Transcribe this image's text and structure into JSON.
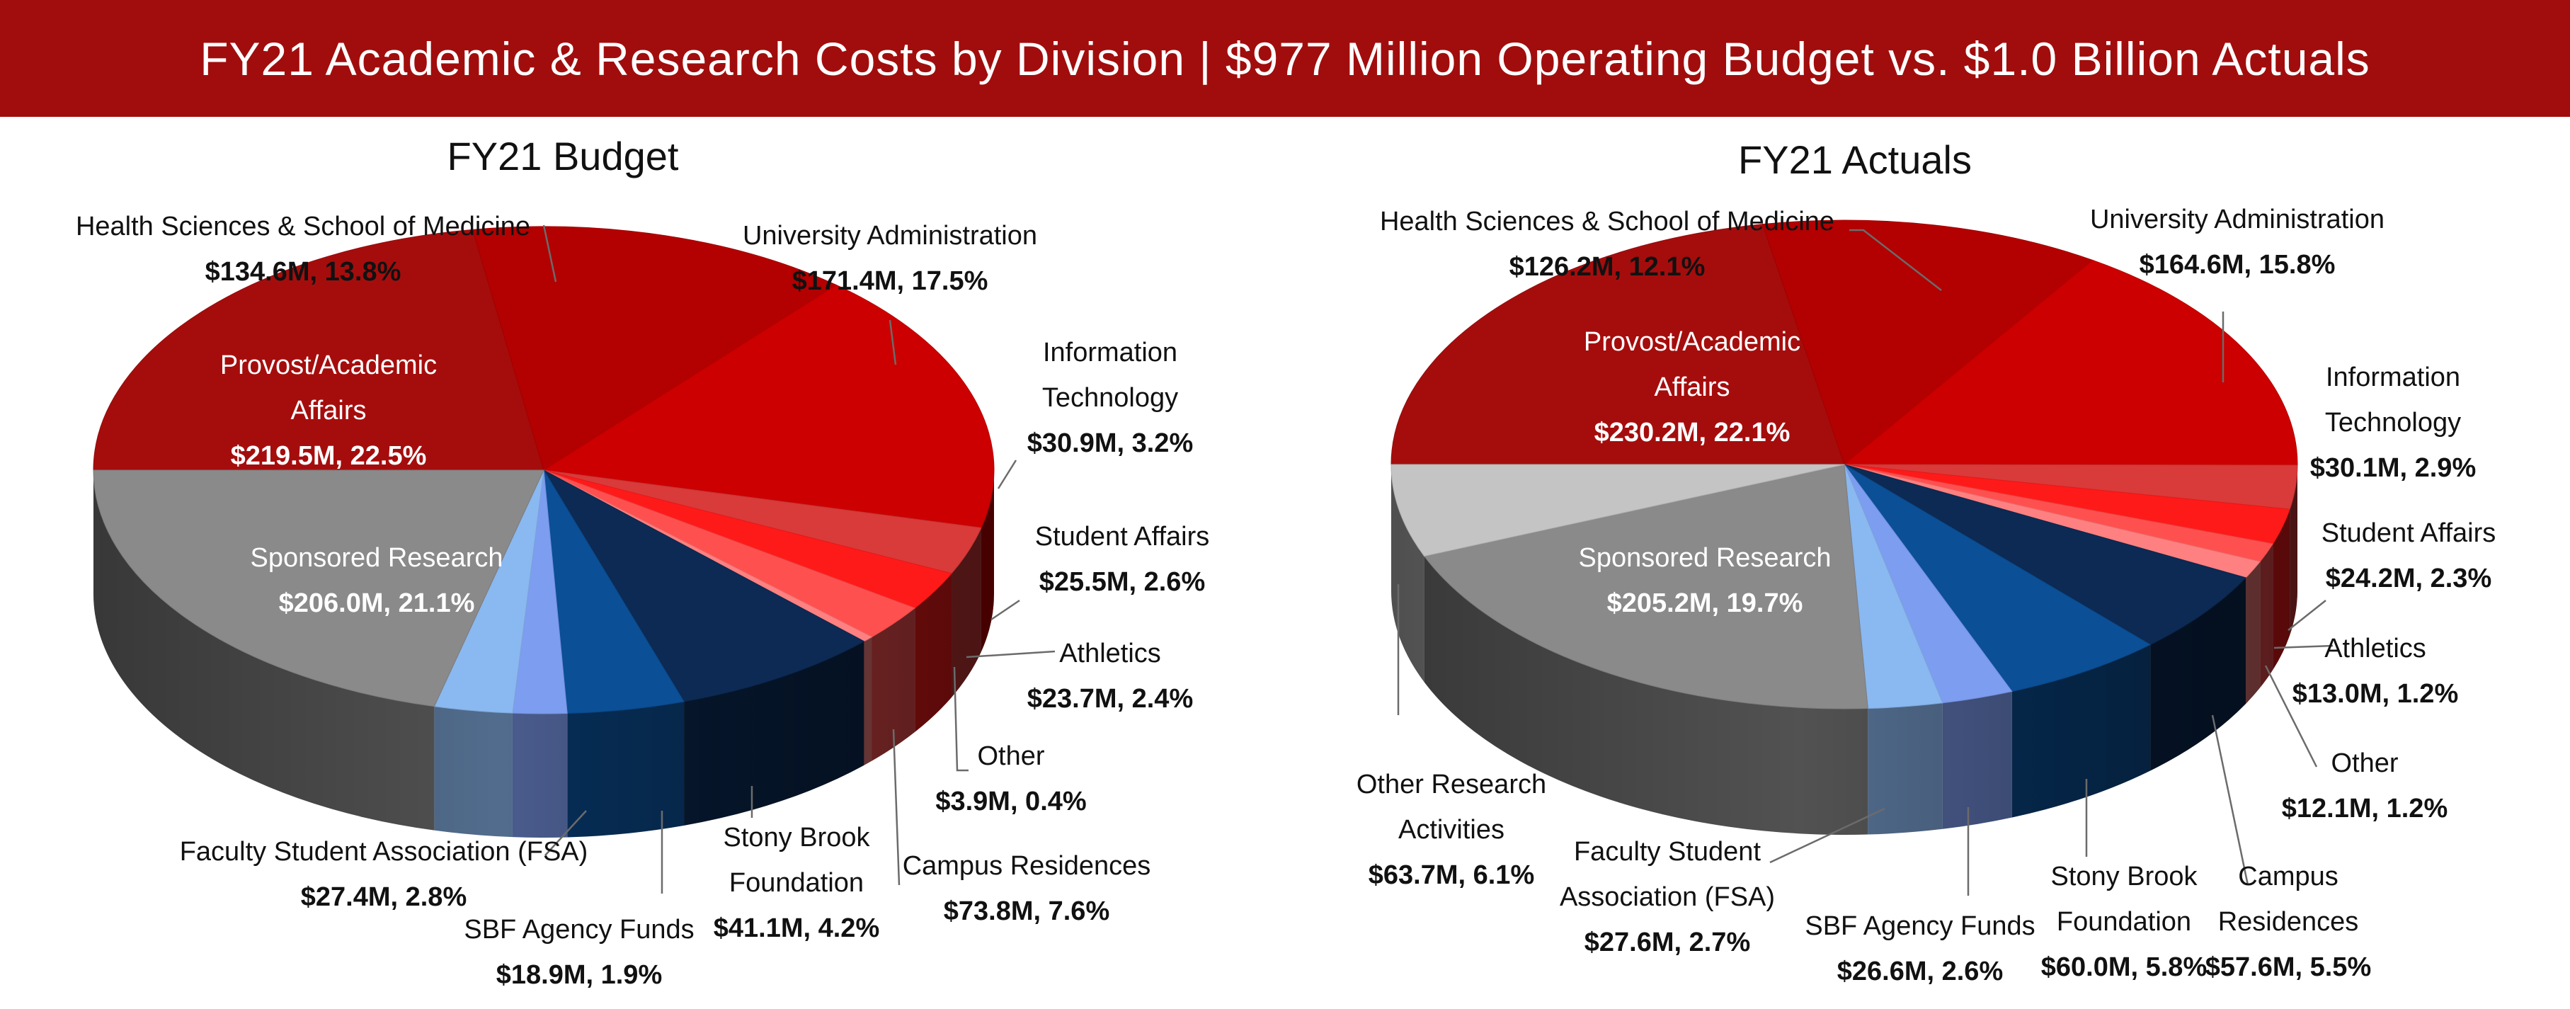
{
  "banner": {
    "title": "FY21 Academic & Research Costs by Division | $977 Million Operating Budget vs. $1.0 Billion Actuals"
  },
  "colors": {
    "banner": "#a10d0d",
    "provost": "#a50d0d",
    "health": "#b30000",
    "university_admin": "#cc0000",
    "information_technology": "#d93a3a",
    "student_affairs": "#ff1a1a",
    "athletics": "#ff5050",
    "other": "#ff8080",
    "campus_residences": "#0c2a54",
    "stony_brook_foundation": "#0b4f96",
    "sbf_agency_funds": "#7d9df0",
    "fsa": "#8ab8f0",
    "sponsored_research": "#8a8a8a",
    "other_research": "#c4c4c4"
  },
  "chart_data": [
    {
      "type": "pie",
      "title": "FY21 Budget",
      "slices": [
        {
          "label": "Provost/Academic Affairs",
          "value": 219.5,
          "value_label": "$219.5M, 22.5%"
        },
        {
          "label": "Health Sciences & School of Medicine",
          "value": 134.6,
          "value_label": "$134.6M, 13.8%"
        },
        {
          "label": "University Administration",
          "value": 171.4,
          "value_label": "$171.4M, 17.5%"
        },
        {
          "label": "Information Technology",
          "value": 30.9,
          "value_label": "$30.9M, 3.2%"
        },
        {
          "label": "Student Affairs",
          "value": 25.5,
          "value_label": "$25.5M, 2.6%"
        },
        {
          "label": "Athletics",
          "value": 23.7,
          "value_label": "$23.7M, 2.4%"
        },
        {
          "label": "Other",
          "value": 3.9,
          "value_label": "$3.9M, 0.4%"
        },
        {
          "label": "Campus Residences",
          "value": 73.8,
          "value_label": "$73.8M, 7.6%"
        },
        {
          "label": "Stony Brook Foundation",
          "value": 41.1,
          "value_label": "$41.1M, 4.2%"
        },
        {
          "label": "SBF Agency Funds",
          "value": 18.9,
          "value_label": "$18.9M, 1.9%"
        },
        {
          "label": "Faculty Student Association (FSA)",
          "value": 27.4,
          "value_label": "$27.4M, 2.8%"
        },
        {
          "label": "Sponsored Research",
          "value": 206.0,
          "value_label": "$206.0M, 21.1%"
        }
      ]
    },
    {
      "type": "pie",
      "title": "FY21 Actuals",
      "slices": [
        {
          "label": "Provost/Academic Affairs",
          "value": 230.2,
          "value_label": "$230.2M, 22.1%"
        },
        {
          "label": "Health Sciences & School of Medicine",
          "value": 126.2,
          "value_label": "$126.2M, 12.1%"
        },
        {
          "label": "University Administration",
          "value": 164.6,
          "value_label": "$164.6M, 15.8%"
        },
        {
          "label": "Information Technology",
          "value": 30.1,
          "value_label": "$30.1M, 2.9%"
        },
        {
          "label": "Student Affairs",
          "value": 24.2,
          "value_label": "$24.2M, 2.3%"
        },
        {
          "label": "Athletics",
          "value": 13.0,
          "value_label": "$13.0M, 1.2%"
        },
        {
          "label": "Other",
          "value": 12.1,
          "value_label": "$12.1M, 1.2%"
        },
        {
          "label": "Campus Residences",
          "value": 57.6,
          "value_label": "$57.6M, 5.5%"
        },
        {
          "label": "Stony Brook Foundation",
          "value": 60.0,
          "value_label": "$60.0M, 5.8%"
        },
        {
          "label": "SBF Agency Funds",
          "value": 26.6,
          "value_label": "$26.6M, 2.6%"
        },
        {
          "label": "Faculty Student Association (FSA)",
          "value": 27.6,
          "value_label": "$27.6M, 2.7%"
        },
        {
          "label": "Sponsored Research",
          "value": 205.2,
          "value_label": "$205.2M, 19.7%"
        },
        {
          "label": "Other Research Activities",
          "value": 63.7,
          "value_label": "$63.7M, 6.1%"
        }
      ]
    }
  ]
}
